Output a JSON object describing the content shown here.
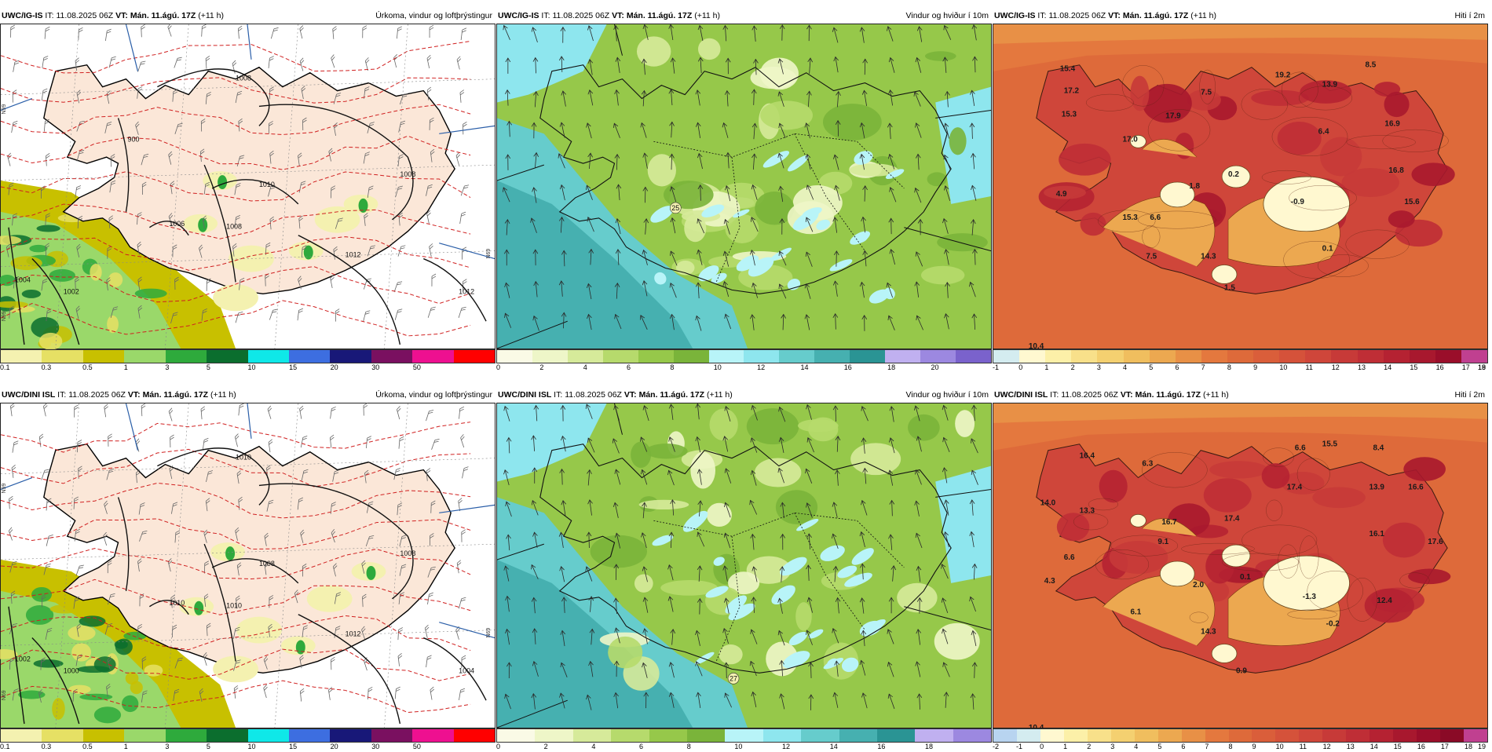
{
  "panels": [
    {
      "id": "p1",
      "kind": "precip",
      "model": "UWC/IG-IS",
      "it_label": "IT:",
      "it_value": "11.08.2025 06Z",
      "vt_label": "VT:",
      "vt_value": "Mán. 11.ágú. 17Z",
      "lead": "(+11 h)",
      "title": "Úrkoma, vindur og loftþrýstingur",
      "colorbar": [
        "#f4f1b0",
        "#e6e064",
        "#c8c000",
        "#9ad86a",
        "#2eaa3c",
        "#0b6e2e",
        "#0fe8e8",
        "#3d6ee0",
        "#181878",
        "#7a1060",
        "#ee1090",
        "#ff0000"
      ],
      "ticks": [
        "0.1",
        "0.3",
        "0.5",
        "1",
        "3",
        "5",
        "10",
        "15",
        "20",
        "30",
        "50"
      ],
      "isobars": [
        "1008",
        "1008",
        "1010",
        "1006",
        "1008",
        "1012",
        "1012",
        "1002",
        "1004",
        "900"
      ],
      "edge_labels": [
        "N99",
        "N99",
        "N69"
      ]
    },
    {
      "id": "p2",
      "kind": "wind",
      "model": "UWC/IG-IS",
      "it_label": "IT:",
      "it_value": "11.08.2025 06Z",
      "vt_label": "VT:",
      "vt_value": "Mán. 11.ágú. 17Z",
      "lead": "(+11 h)",
      "title": "Vindur og hviður í 10m",
      "colorbar": [
        "#fafae6",
        "#eef6c8",
        "#d6ea9a",
        "#b6da6c",
        "#96c84a",
        "#7ab43a",
        "#b8f4f8",
        "#8ee6ee",
        "#66cccc",
        "#46b0b0",
        "#2a9494",
        "#c0b0f0",
        "#9c88e0",
        "#7a62cc"
      ],
      "ticks": [
        "0",
        "2",
        "4",
        "6",
        "8",
        "10",
        "12",
        "14",
        "16",
        "18",
        "20"
      ],
      "gust_labels": [
        "25"
      ]
    },
    {
      "id": "p3",
      "kind": "temp",
      "model": "UWC/IG-IS",
      "it_label": "IT:",
      "it_value": "11.08.2025 06Z",
      "vt_label": "VT:",
      "vt_value": "Mán. 11.ágú. 17Z",
      "lead": "(+11 h)",
      "title": "Hiti í 2m",
      "colorbar": [
        "#d4ecf0",
        "#fff8d0",
        "#fcf0a8",
        "#f8e08a",
        "#f4d070",
        "#f0be5e",
        "#eca850",
        "#e89046",
        "#e4783e",
        "#de6a3a",
        "#da5e3a",
        "#d5523a",
        "#cf463a",
        "#c73a38",
        "#bf2e36",
        "#b52232",
        "#a8182e",
        "#9a0e2a",
        "#c04090"
      ],
      "ticks": [
        "-1",
        "0",
        "1",
        "2",
        "3",
        "4",
        "5",
        "6",
        "7",
        "8",
        "9",
        "10",
        "11",
        "12",
        "13",
        "14",
        "15",
        "16",
        "17",
        "18",
        "19"
      ],
      "values": [
        "15.4",
        "17.2",
        "15.3",
        "13.9",
        "17.0",
        "19.2",
        "6.4",
        "17.9",
        "15.3",
        "8.5",
        "7.5",
        "16.9",
        "16.8",
        "15.6",
        "4.9",
        "1.8",
        "0.2",
        "-0.9",
        "6.6",
        "14.3",
        "0.1",
        "7.5",
        "1.5",
        "10.4"
      ]
    },
    {
      "id": "p4",
      "kind": "precip",
      "model": "UWC/DINI ISL",
      "it_label": "IT:",
      "it_value": "11.08.2025 06Z",
      "vt_label": "VT:",
      "vt_value": "Mán. 11.ágú. 17Z",
      "lead": "(+11 h)",
      "title": "Úrkoma, vindur og loftþrýstingur",
      "colorbar": [
        "#f4f1b0",
        "#e6e064",
        "#c8c000",
        "#9ad86a",
        "#2eaa3c",
        "#0b6e2e",
        "#0fe8e8",
        "#3d6ee0",
        "#181878",
        "#7a1060",
        "#ee1090",
        "#ff0000"
      ],
      "ticks": [
        "0.1",
        "0.3",
        "0.5",
        "1",
        "3",
        "5",
        "10",
        "15",
        "20",
        "30",
        "50"
      ],
      "isobars": [
        "1010",
        "1008",
        "1008",
        "1010",
        "1010",
        "1012",
        "1004",
        "1000",
        "1002"
      ],
      "edge_labels": [
        "N99",
        "N69",
        "N69"
      ]
    },
    {
      "id": "p5",
      "kind": "wind",
      "model": "UWC/DINI ISL",
      "it_label": "IT:",
      "it_value": "11.08.2025 06Z",
      "vt_label": "VT:",
      "vt_value": "Mán. 11.ágú. 17Z",
      "lead": "(+11 h)",
      "title": "Vindur og hviður í 10m",
      "colorbar": [
        "#fafae6",
        "#eef6c8",
        "#d6ea9a",
        "#b6da6c",
        "#96c84a",
        "#7ab43a",
        "#b8f4f8",
        "#8ee6ee",
        "#66cccc",
        "#46b0b0",
        "#2a9494",
        "#c0b0f0",
        "#9c88e0"
      ],
      "ticks": [
        "0",
        "2",
        "4",
        "6",
        "8",
        "10",
        "12",
        "14",
        "16",
        "18"
      ],
      "gust_labels": [
        "27"
      ]
    },
    {
      "id": "p6",
      "kind": "temp",
      "model": "UWC/DINI ISL",
      "it_label": "IT:",
      "it_value": "11.08.2025 06Z",
      "vt_label": "VT:",
      "vt_value": "Mán. 11.ágú. 17Z",
      "lead": "(+11 h)",
      "title": "Hiti í 2m",
      "colorbar": [
        "#b8d4f0",
        "#d4ecf0",
        "#fff8d0",
        "#fcf0a8",
        "#f8e08a",
        "#f4d070",
        "#f0be5e",
        "#eca850",
        "#e89046",
        "#e4783e",
        "#de6a3a",
        "#da5e3a",
        "#d5523a",
        "#cf463a",
        "#c73a38",
        "#bf2e36",
        "#b52232",
        "#a8182e",
        "#9a0e2a",
        "#8a0a26",
        "#c04090"
      ],
      "ticks": [
        "-2",
        "-1",
        "0",
        "1",
        "2",
        "3",
        "4",
        "5",
        "6",
        "7",
        "8",
        "9",
        "10",
        "11",
        "12",
        "13",
        "14",
        "15",
        "16",
        "17",
        "18",
        "19"
      ],
      "values": [
        "16.4",
        "6.3",
        "6.6",
        "15.5",
        "8.4",
        "14.0",
        "13.3",
        "16.7",
        "17.4",
        "17.4",
        "13.9",
        "16.6",
        "16.1",
        "17.6",
        "6.6",
        "9.1",
        "4.3",
        "2.0",
        "0.1",
        "-1.3",
        "12.4",
        "6.1",
        "14.3",
        "-0.2",
        "0.9",
        "10.4"
      ]
    }
  ]
}
